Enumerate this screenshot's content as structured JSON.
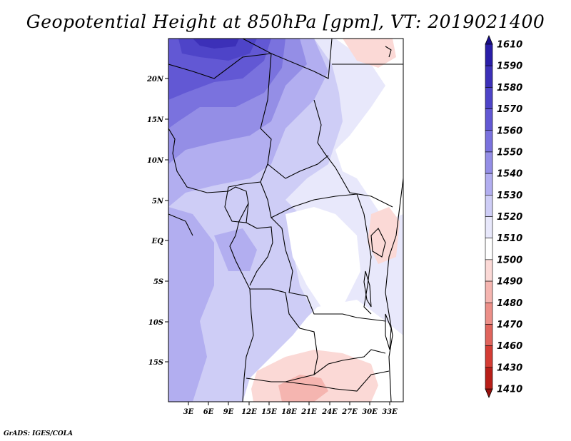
{
  "title": "Geopotential Height at 850hPa [gpm], VT: 2019021400",
  "credit": "GrADS: IGES/COLA",
  "map": {
    "lon_range": [
      0,
      35
    ],
    "lat_range": [
      -20.5,
      24.5
    ],
    "lon_ticks": [
      "3E",
      "6E",
      "9E",
      "12E",
      "15E",
      "18E",
      "21E",
      "24E",
      "27E",
      "30E",
      "33E"
    ],
    "lat_ticks": [
      "20N",
      "15N",
      "10N",
      "5N",
      "EQ",
      "5S",
      "10S",
      "15S"
    ]
  },
  "colorbar": {
    "levels": [
      "1610",
      "1590",
      "1580",
      "1570",
      "1560",
      "1550",
      "1540",
      "1530",
      "1520",
      "1510",
      "1500",
      "1490",
      "1480",
      "1470",
      "1460",
      "1430",
      "1410"
    ],
    "colors": [
      "#1a0e8c",
      "#2a1ea8",
      "#3c30b8",
      "#4e44c8",
      "#6258d4",
      "#7a72de",
      "#948ee6",
      "#b2aef0",
      "#cecdf6",
      "#e8e8fb",
      "#ffffff",
      "#fbd9d6",
      "#f5b5b0",
      "#ec8f88",
      "#e0645c",
      "#d43c34",
      "#b81e18",
      "#98100c"
    ]
  },
  "icons": {
    "colorbar_top": "triangle-up-icon",
    "colorbar_bottom": "triangle-down-icon"
  }
}
